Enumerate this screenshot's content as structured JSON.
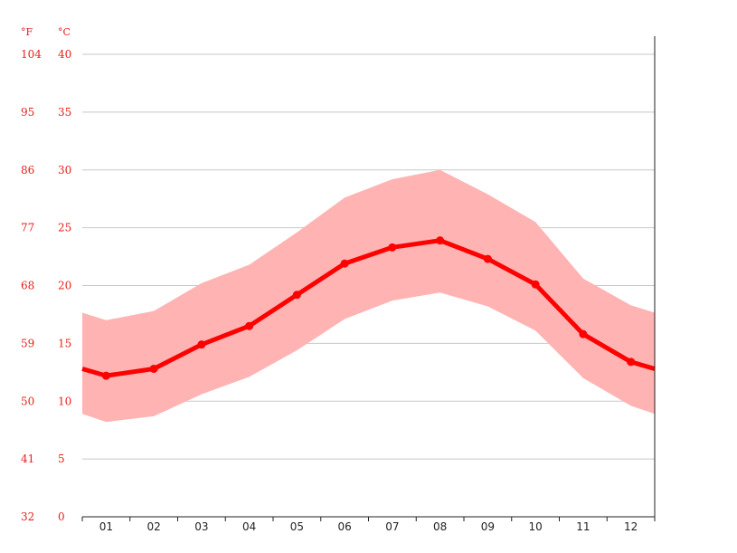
{
  "chart_data": {
    "type": "line",
    "title": "",
    "xlabel": "",
    "ylabel": "",
    "units": {
      "fahrenheit": "°F",
      "celsius": "°C"
    },
    "categories": [
      "01",
      "02",
      "03",
      "04",
      "05",
      "06",
      "07",
      "08",
      "09",
      "10",
      "11",
      "12"
    ],
    "celsius_ticks": [
      "0",
      "5",
      "10",
      "15",
      "20",
      "25",
      "30",
      "35",
      "40"
    ],
    "fahrenheit_ticks": [
      "32",
      "41",
      "50",
      "59",
      "68",
      "77",
      "86",
      "95",
      "104"
    ],
    "ylim": [
      0,
      40
    ],
    "grid": true,
    "series": [
      {
        "role": "mean",
        "color": "#ff0000",
        "values": [
          12.2,
          12.8,
          14.9,
          16.5,
          19.2,
          21.9,
          23.3,
          23.9,
          22.3,
          20.1,
          15.8,
          13.4
        ]
      },
      {
        "role": "range",
        "color": "#ffb3b3",
        "max": [
          17.0,
          17.8,
          20.2,
          21.8,
          24.6,
          27.6,
          29.2,
          30.0,
          27.9,
          25.5,
          20.6,
          18.3
        ],
        "min": [
          8.2,
          8.7,
          10.6,
          12.1,
          14.4,
          17.1,
          18.7,
          19.4,
          18.2,
          16.1,
          12.0,
          9.6
        ]
      }
    ]
  }
}
